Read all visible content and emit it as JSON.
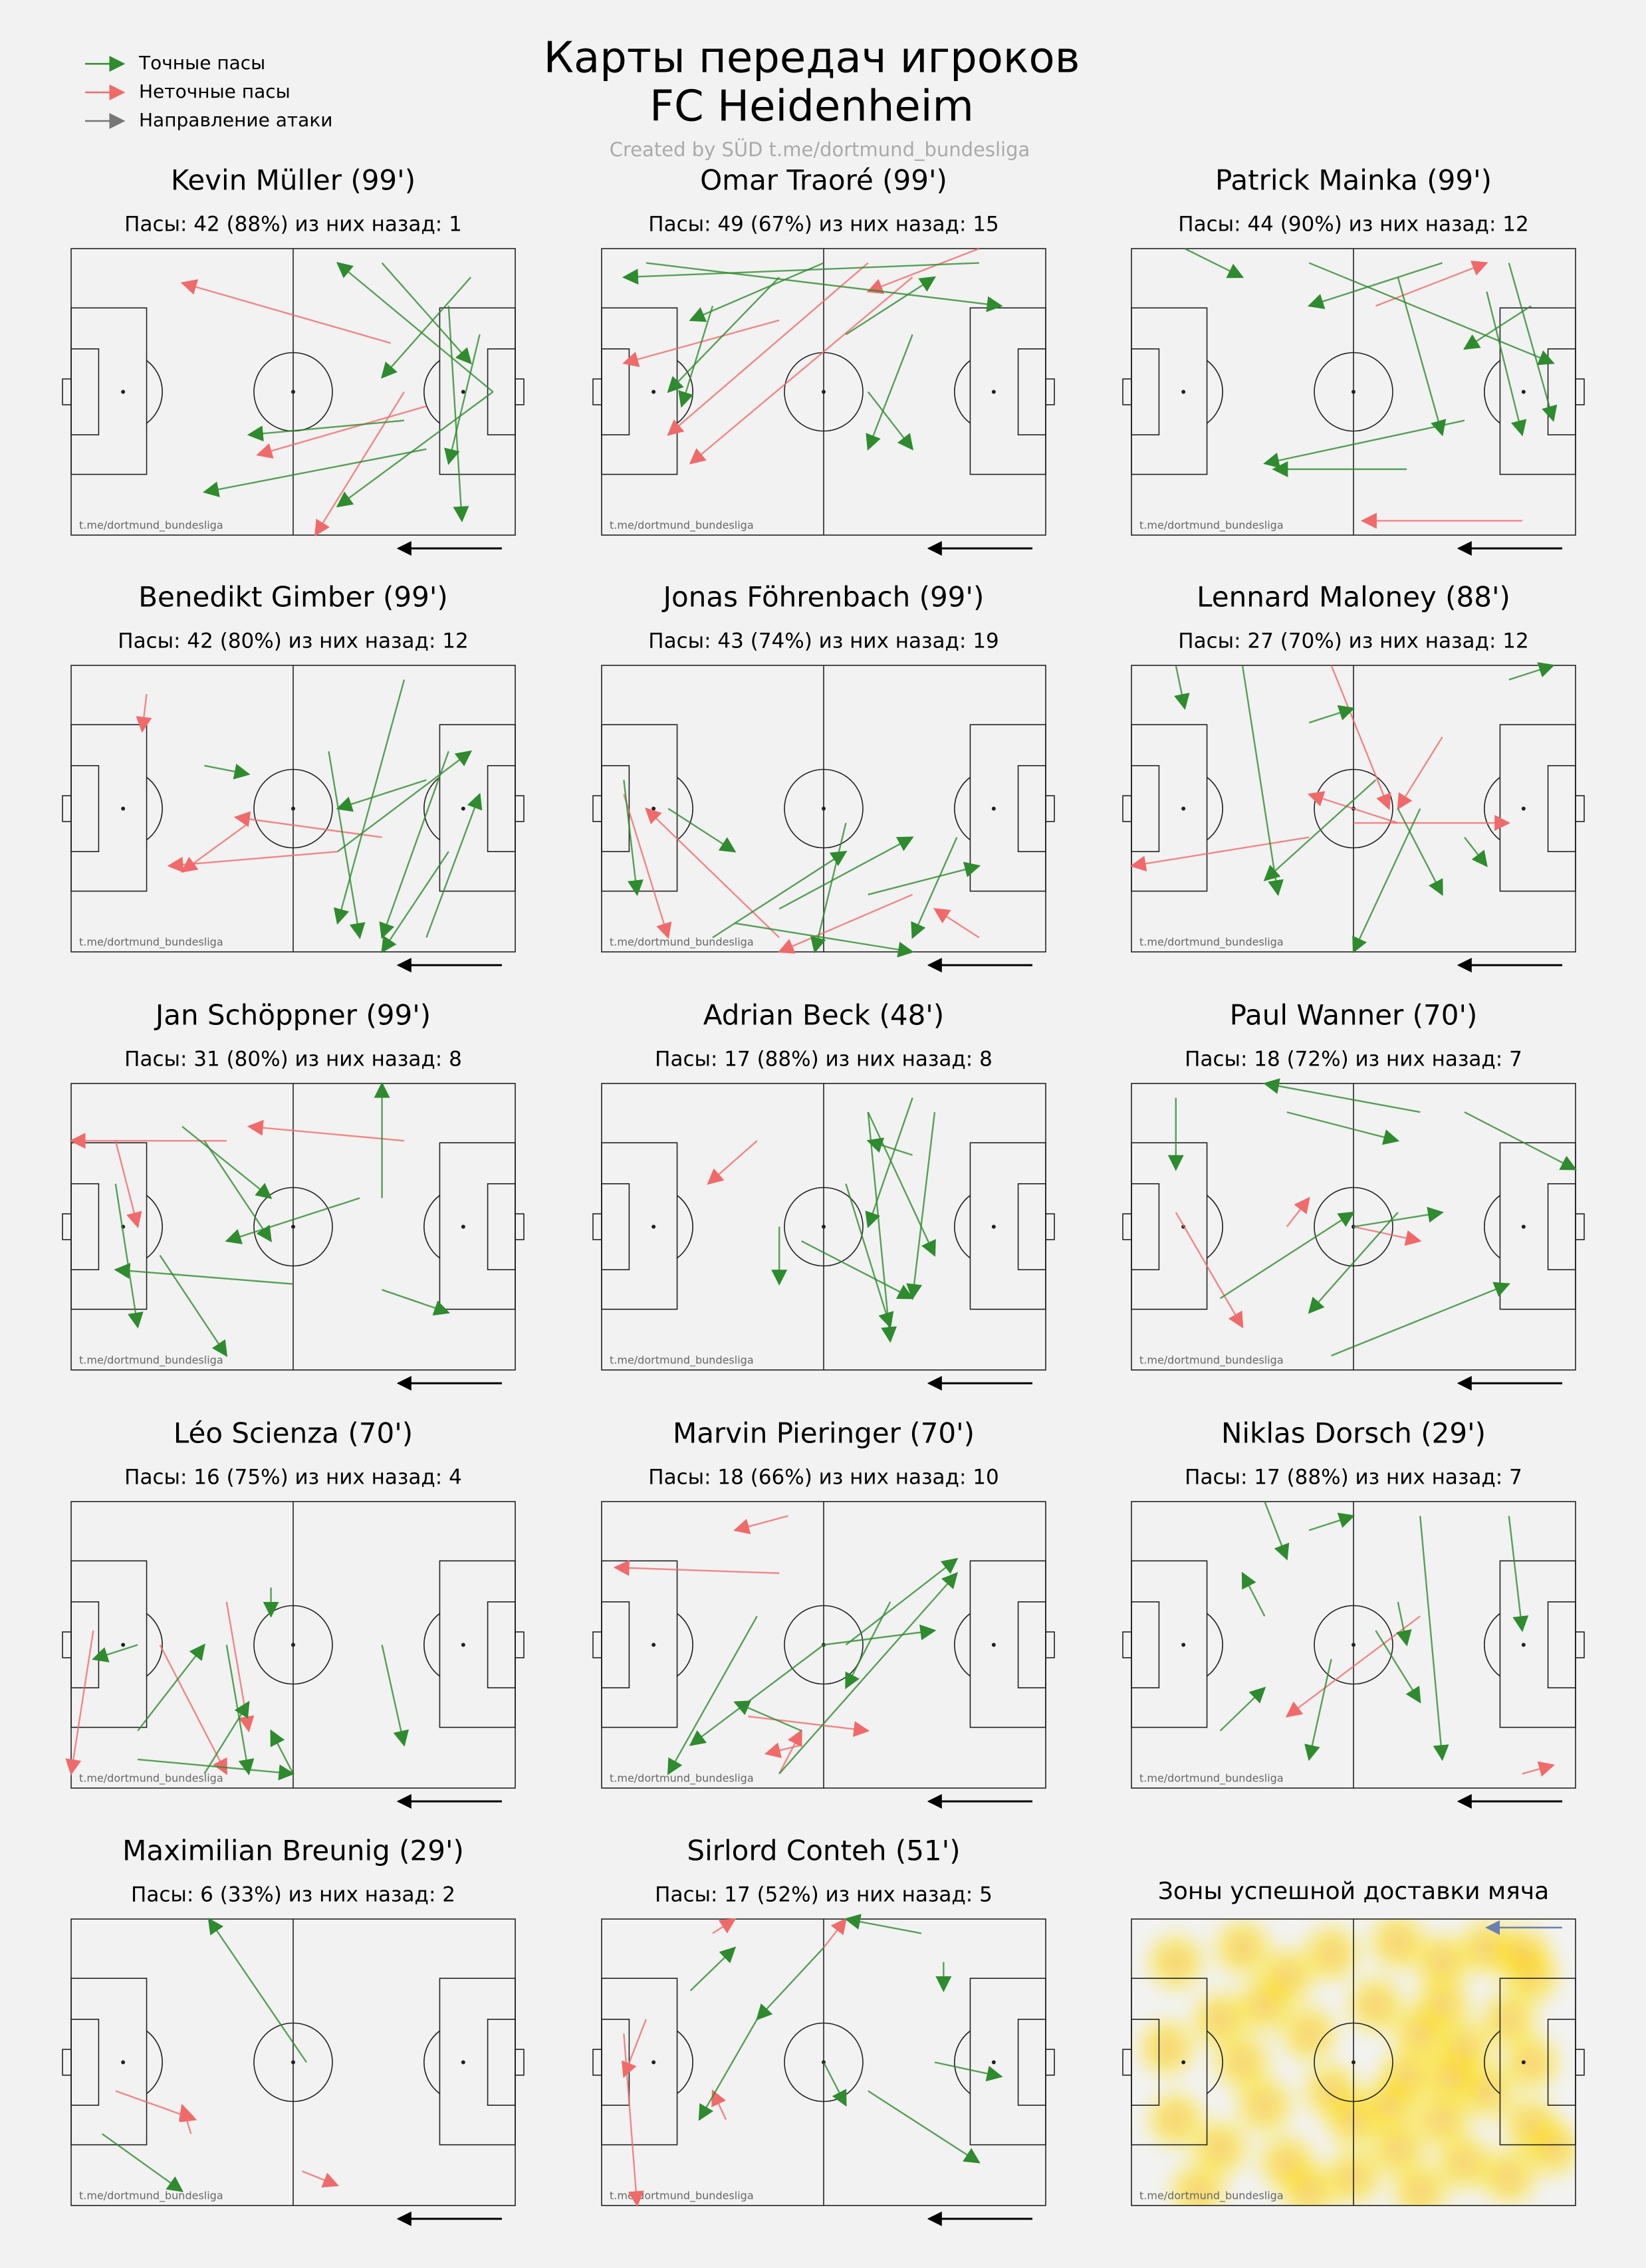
{
  "header": {
    "title": "Карты передач игроков",
    "team": "FC Heidenheim",
    "credit": "Created by SÜD t.me/dortmund_bundesliga"
  },
  "legend": [
    {
      "label": "Точные пасы",
      "color": "#2e8b2e"
    },
    {
      "label": "Неточные пасы",
      "color": "#f06a6a"
    },
    {
      "label": "Направление атаки",
      "color": "#777777"
    }
  ],
  "watermark": "t.me/dortmund_bundesliga",
  "panels": [
    {
      "name": "Kevin Müller (99')",
      "stats": "Пасы: 42 (88%) из них назад: 1",
      "accurate": [
        [
          90,
          10,
          70,
          45
        ],
        [
          80,
          70,
          30,
          85
        ],
        [
          95,
          50,
          60,
          5
        ],
        [
          85,
          20,
          88,
          95
        ],
        [
          75,
          60,
          40,
          65
        ],
        [
          95,
          50,
          60,
          90
        ],
        [
          70,
          5,
          90,
          40
        ],
        [
          92,
          30,
          85,
          75
        ]
      ],
      "inaccurate": [
        [
          72,
          33,
          25,
          12
        ],
        [
          80,
          55,
          42,
          72
        ],
        [
          75,
          50,
          55,
          100
        ]
      ]
    },
    {
      "name": "Omar Traoré (99')",
      "stats": "Пасы: 49 (67%) из них назад: 15",
      "accurate": [
        [
          10,
          5,
          90,
          20
        ],
        [
          40,
          10,
          15,
          50
        ],
        [
          70,
          30,
          60,
          70
        ],
        [
          50,
          5,
          20,
          25
        ],
        [
          85,
          5,
          5,
          10
        ],
        [
          55,
          30,
          75,
          10
        ],
        [
          60,
          50,
          70,
          70
        ],
        [
          25,
          20,
          18,
          55
        ]
      ],
      "inaccurate": [
        [
          70,
          10,
          20,
          75
        ],
        [
          40,
          25,
          5,
          40
        ],
        [
          60,
          5,
          15,
          65
        ],
        [
          85,
          0,
          60,
          15
        ]
      ]
    },
    {
      "name": "Patrick Mainka (99')",
      "stats": "Пасы: 44 (90%) из них назад: 12",
      "accurate": [
        [
          40,
          5,
          95,
          40
        ],
        [
          60,
          10,
          70,
          65
        ],
        [
          75,
          60,
          30,
          75
        ],
        [
          85,
          5,
          95,
          60
        ],
        [
          70,
          5,
          40,
          20
        ],
        [
          90,
          20,
          75,
          35
        ],
        [
          12,
          0,
          25,
          10
        ],
        [
          80,
          15,
          88,
          65
        ],
        [
          62,
          77,
          32,
          77
        ]
      ],
      "inaccurate": [
        [
          88,
          95,
          52,
          95
        ],
        [
          55,
          20,
          80,
          5
        ]
      ]
    },
    {
      "name": "Benedikt Gimber (99')",
      "stats": "Пасы: 42 (80%) из них назад: 12",
      "accurate": [
        [
          85,
          30,
          70,
          95
        ],
        [
          80,
          40,
          60,
          50
        ],
        [
          60,
          65,
          90,
          30
        ],
        [
          58,
          30,
          65,
          95
        ],
        [
          80,
          95,
          92,
          45
        ],
        [
          30,
          35,
          40,
          38
        ],
        [
          75,
          5,
          60,
          90
        ],
        [
          85,
          65,
          70,
          100
        ]
      ],
      "inaccurate": [
        [
          40,
          55,
          25,
          72
        ],
        [
          60,
          65,
          22,
          70
        ],
        [
          17,
          10,
          16,
          23
        ],
        [
          70,
          60,
          37,
          53
        ]
      ]
    },
    {
      "name": "Jonas Föhrenbach (99')",
      "stats": "Пасы: 43 (74%) из них назад: 19",
      "accurate": [
        [
          25,
          95,
          55,
          65
        ],
        [
          5,
          40,
          8,
          80
        ],
        [
          80,
          60,
          70,
          95
        ],
        [
          40,
          85,
          70,
          60
        ],
        [
          15,
          50,
          30,
          65
        ],
        [
          55,
          55,
          48,
          100
        ],
        [
          60,
          80,
          85,
          70
        ],
        [
          30,
          90,
          70,
          100
        ]
      ],
      "inaccurate": [
        [
          85,
          95,
          75,
          85
        ],
        [
          5,
          45,
          15,
          95
        ],
        [
          40,
          95,
          10,
          50
        ],
        [
          70,
          80,
          40,
          100
        ]
      ]
    },
    {
      "name": "Lennard Maloney (88')",
      "stats": "Пасы: 27 (70%) из них назад: 12",
      "accurate": [
        [
          25,
          0,
          33,
          80
        ],
        [
          65,
          50,
          50,
          100
        ],
        [
          55,
          40,
          30,
          75
        ],
        [
          40,
          20,
          50,
          15
        ],
        [
          85,
          5,
          95,
          0
        ],
        [
          60,
          50,
          70,
          80
        ],
        [
          75,
          60,
          80,
          70
        ],
        [
          10,
          0,
          12,
          15
        ]
      ],
      "inaccurate": [
        [
          60,
          55,
          40,
          45
        ],
        [
          40,
          60,
          0,
          70
        ],
        [
          70,
          25,
          60,
          50
        ],
        [
          50,
          55,
          85,
          55
        ],
        [
          45,
          0,
          58,
          50
        ]
      ]
    },
    {
      "name": "Jan Schöppner (99')",
      "stats": "Пасы: 31 (80%) из них назад: 8",
      "accurate": [
        [
          70,
          40,
          70,
          0
        ],
        [
          50,
          70,
          10,
          65
        ],
        [
          30,
          20,
          45,
          55
        ],
        [
          20,
          60,
          35,
          95
        ],
        [
          65,
          40,
          35,
          55
        ],
        [
          25,
          15,
          45,
          40
        ],
        [
          70,
          72,
          85,
          80
        ],
        [
          10,
          35,
          15,
          85
        ]
      ],
      "inaccurate": [
        [
          35,
          20,
          0,
          20
        ],
        [
          75,
          20,
          40,
          15
        ],
        [
          10,
          20,
          15,
          50
        ]
      ]
    },
    {
      "name": "Adrian Beck (48')",
      "stats": "Пасы: 17 (88%) из них назад: 8",
      "accurate": [
        [
          60,
          10,
          65,
          90
        ],
        [
          70,
          25,
          60,
          20
        ],
        [
          45,
          55,
          70,
          75
        ],
        [
          55,
          35,
          65,
          85
        ],
        [
          70,
          5,
          60,
          50
        ],
        [
          40,
          50,
          40,
          70
        ],
        [
          75,
          10,
          70,
          75
        ],
        [
          60,
          10,
          75,
          60
        ]
      ],
      "inaccurate": [
        [
          35,
          20,
          24,
          35
        ]
      ]
    },
    {
      "name": "Paul Wanner (70')",
      "stats": "Пасы: 18 (72%) из них назад: 7",
      "accurate": [
        [
          75,
          10,
          100,
          30
        ],
        [
          20,
          75,
          50,
          45
        ],
        [
          65,
          10,
          30,
          0
        ],
        [
          50,
          50,
          70,
          45
        ],
        [
          45,
          95,
          85,
          70
        ],
        [
          10,
          5,
          10,
          30
        ],
        [
          35,
          10,
          60,
          20
        ],
        [
          60,
          45,
          40,
          80
        ]
      ],
      "inaccurate": [
        [
          10,
          45,
          25,
          85
        ],
        [
          50,
          50,
          65,
          55
        ],
        [
          35,
          50,
          40,
          40
        ]
      ]
    },
    {
      "name": "Léo Scienza (70')",
      "stats": "Пасы: 16 (75%) из них назад: 4",
      "accurate": [
        [
          15,
          80,
          30,
          50
        ],
        [
          35,
          50,
          40,
          95
        ],
        [
          45,
          30,
          45,
          40
        ],
        [
          70,
          50,
          75,
          85
        ],
        [
          50,
          95,
          45,
          80
        ],
        [
          15,
          50,
          5,
          55
        ],
        [
          15,
          90,
          50,
          95
        ],
        [
          30,
          95,
          40,
          70
        ]
      ],
      "inaccurate": [
        [
          20,
          50,
          35,
          95
        ],
        [
          35,
          35,
          40,
          80
        ],
        [
          5,
          45,
          0,
          95
        ]
      ]
    },
    {
      "name": "Marvin Pieringer (70')",
      "stats": "Пасы: 18 (66%) из них назад: 10",
      "accurate": [
        [
          40,
          95,
          80,
          25
        ],
        [
          50,
          50,
          75,
          45
        ],
        [
          55,
          50,
          80,
          20
        ],
        [
          45,
          80,
          30,
          70
        ],
        [
          65,
          35,
          55,
          65
        ],
        [
          50,
          50,
          20,
          85
        ],
        [
          35,
          40,
          15,
          95
        ]
      ],
      "inaccurate": [
        [
          40,
          25,
          3,
          23
        ],
        [
          40,
          95,
          45,
          80
        ],
        [
          33,
          75,
          60,
          80
        ],
        [
          42,
          5,
          30,
          10
        ],
        [
          45,
          85,
          37,
          88
        ]
      ]
    },
    {
      "name": "Niklas Dorsch (29')",
      "stats": "Пасы: 17 (88%) из них назад: 7",
      "accurate": [
        [
          20,
          80,
          30,
          65
        ],
        [
          30,
          40,
          25,
          25
        ],
        [
          65,
          5,
          70,
          90
        ],
        [
          55,
          45,
          65,
          70
        ],
        [
          30,
          0,
          35,
          20
        ],
        [
          45,
          55,
          40,
          90
        ],
        [
          60,
          35,
          62,
          50
        ],
        [
          85,
          5,
          88,
          45
        ],
        [
          40,
          10,
          50,
          5
        ]
      ],
      "inaccurate": [
        [
          65,
          40,
          35,
          75
        ],
        [
          88,
          95,
          95,
          92
        ]
      ]
    },
    {
      "name": "Maximilian Breunig (29')",
      "stats": "Пасы: 6 (33%) из них назад: 2",
      "accurate": [
        [
          53,
          50,
          31,
          0
        ],
        [
          7,
          75,
          25,
          95
        ]
      ],
      "inaccurate": [
        [
          10,
          60,
          28,
          70
        ],
        [
          27,
          75,
          25,
          65
        ],
        [
          52,
          88,
          60,
          93
        ]
      ]
    },
    {
      "name": "Sirlord Conteh (51')",
      "stats": "Пасы: 17 (52%) из них назад: 5",
      "accurate": [
        [
          20,
          25,
          30,
          10
        ],
        [
          50,
          10,
          35,
          35
        ],
        [
          60,
          60,
          85,
          85
        ],
        [
          50,
          50,
          55,
          65
        ],
        [
          35,
          35,
          22,
          70
        ],
        [
          75,
          50,
          90,
          55
        ],
        [
          72,
          5,
          55,
          0
        ],
        [
          77,
          15,
          77,
          25
        ]
      ],
      "inaccurate": [
        [
          5,
          40,
          8,
          100
        ],
        [
          10,
          35,
          5,
          55
        ],
        [
          28,
          70,
          25,
          60
        ],
        [
          50,
          10,
          55,
          0
        ],
        [
          25,
          5,
          30,
          0
        ]
      ]
    }
  ],
  "heatmap": {
    "title": "Зоны успешной доставки мяча",
    "zones": [
      [
        10,
        15
      ],
      [
        25,
        10
      ],
      [
        35,
        20
      ],
      [
        45,
        12
      ],
      [
        60,
        8
      ],
      [
        70,
        15
      ],
      [
        80,
        10
      ],
      [
        90,
        20
      ],
      [
        70,
        30
      ],
      [
        85,
        35
      ],
      [
        65,
        40
      ],
      [
        75,
        45
      ],
      [
        90,
        50
      ],
      [
        62,
        55
      ],
      [
        80,
        60
      ],
      [
        70,
        70
      ],
      [
        90,
        72
      ],
      [
        60,
        80
      ],
      [
        75,
        85
      ],
      [
        85,
        90
      ],
      [
        50,
        90
      ],
      [
        35,
        85
      ],
      [
        20,
        80
      ],
      [
        10,
        70
      ],
      [
        30,
        65
      ],
      [
        45,
        60
      ],
      [
        25,
        50
      ],
      [
        8,
        45
      ],
      [
        40,
        40
      ],
      [
        55,
        30
      ],
      [
        95,
        80
      ],
      [
        65,
        95
      ],
      [
        40,
        95
      ],
      [
        15,
        95
      ],
      [
        30,
        30
      ],
      [
        50,
        70
      ],
      [
        88,
        12
      ],
      [
        72,
        55
      ],
      [
        58,
        65
      ],
      [
        20,
        35
      ]
    ]
  }
}
